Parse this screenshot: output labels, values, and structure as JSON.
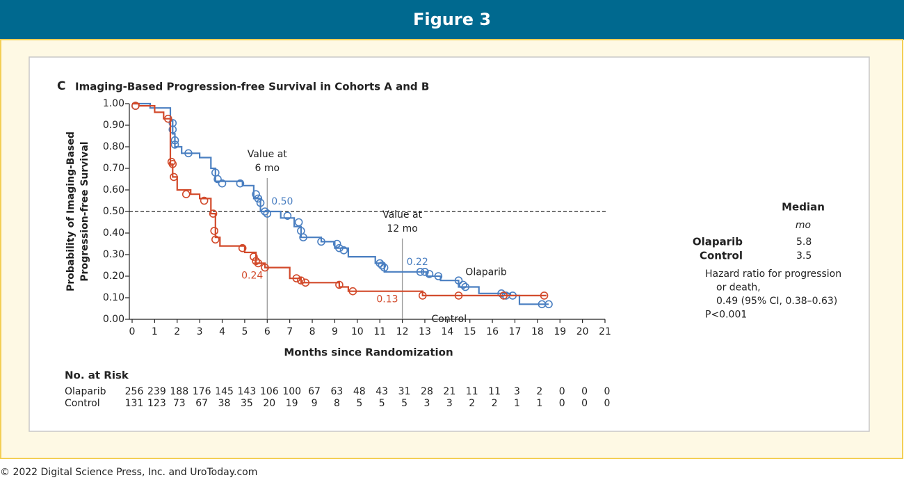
{
  "header": {
    "title": "Figure 3"
  },
  "chart_data": {
    "type": "kaplan-meier",
    "panel": "C",
    "title": "Imaging-Based Progression-free Survival in Cohorts A and B",
    "y_label": [
      "Probability of Imaging-Based",
      "Progression-free Survival"
    ],
    "x_label": "Months since Randomization",
    "xlim": [
      0,
      21
    ],
    "ylim": [
      0,
      1
    ],
    "xticks": [
      0,
      1,
      2,
      3,
      4,
      5,
      6,
      7,
      8,
      9,
      10,
      11,
      12,
      13,
      14,
      15,
      16,
      17,
      18,
      19,
      20,
      21
    ],
    "yticks": [
      {
        "value": 0,
        "label": "0.00"
      },
      {
        "value": 0.1,
        "label": "0.10"
      },
      {
        "value": 0.2,
        "label": "0.20"
      },
      {
        "value": 0.3,
        "label": "0.30"
      },
      {
        "value": 0.4,
        "label": "0.40"
      },
      {
        "value": 0.5,
        "label": "0.50"
      },
      {
        "value": 0.6,
        "label": "0.60"
      },
      {
        "value": 0.7,
        "label": "0.70"
      },
      {
        "value": 0.8,
        "label": "0.80"
      },
      {
        "value": 0.9,
        "label": "0.90"
      },
      {
        "value": 1,
        "label": "1.00"
      }
    ],
    "hline": 0.5,
    "series": [
      {
        "name": "Olaparib",
        "color": "#4a7fc1",
        "x": [
          0,
          0.8,
          0.8,
          1.7,
          1.7,
          1.8,
          1.8,
          1.9,
          1.9,
          2.2,
          2.2,
          3.0,
          3.0,
          3.5,
          3.5,
          3.7,
          3.7,
          4.9,
          4.9,
          5.4,
          5.4,
          5.7,
          5.7,
          6.6,
          6.6,
          7.2,
          7.2,
          7.5,
          7.5,
          8.4,
          8.4,
          9.0,
          9.0,
          9.6,
          9.6,
          10.8,
          10.8,
          11.2,
          11.2,
          13.1,
          13.1,
          13.7,
          13.7,
          14.5,
          14.5,
          15.4,
          15.4,
          16.8,
          16.8,
          17.2,
          17.2,
          18.5
        ],
        "values": [
          1,
          1,
          0.98,
          0.98,
          0.92,
          0.92,
          0.86,
          0.86,
          0.8,
          0.8,
          0.77,
          0.77,
          0.75,
          0.75,
          0.7,
          0.7,
          0.64,
          0.64,
          0.62,
          0.62,
          0.56,
          0.56,
          0.5,
          0.5,
          0.47,
          0.47,
          0.43,
          0.43,
          0.38,
          0.38,
          0.36,
          0.36,
          0.33,
          0.33,
          0.29,
          0.29,
          0.26,
          0.26,
          0.22,
          0.22,
          0.2,
          0.2,
          0.18,
          0.18,
          0.15,
          0.15,
          0.12,
          0.12,
          0.11,
          0.11,
          0.07,
          0.07
        ],
        "censor_x": [
          0.15,
          1.8,
          1.8,
          1.9,
          1.9,
          2.5,
          3.7,
          3.8,
          4.0,
          4.8,
          5.5,
          5.6,
          5.7,
          5.9,
          6.0,
          6.9,
          7.4,
          7.5,
          7.6,
          8.4,
          9.1,
          9.2,
          9.4,
          11.0,
          11.1,
          11.2,
          12.8,
          13.0,
          13.2,
          13.6,
          14.5,
          14.7,
          14.8,
          16.4,
          16.6,
          16.9,
          18.2,
          18.5
        ],
        "censor_y": [
          0.99,
          0.91,
          0.88,
          0.83,
          0.81,
          0.77,
          0.68,
          0.65,
          0.63,
          0.63,
          0.58,
          0.56,
          0.54,
          0.5,
          0.49,
          0.48,
          0.45,
          0.41,
          0.38,
          0.36,
          0.35,
          0.33,
          0.32,
          0.26,
          0.25,
          0.24,
          0.22,
          0.22,
          0.21,
          0.2,
          0.18,
          0.16,
          0.15,
          0.12,
          0.11,
          0.11,
          0.07,
          0.07
        ]
      },
      {
        "name": "Control",
        "color": "#d24a2b",
        "x": [
          0,
          0.3,
          0.3,
          1.0,
          1.0,
          1.4,
          1.4,
          1.7,
          1.7,
          1.8,
          1.8,
          2.0,
          2.0,
          2.6,
          2.6,
          3.0,
          3.0,
          3.5,
          3.5,
          3.7,
          3.7,
          3.9,
          3.9,
          5.0,
          5.0,
          5.5,
          5.5,
          5.9,
          5.9,
          7.0,
          7.0,
          7.5,
          7.5,
          9.2,
          9.2,
          9.6,
          9.6,
          12.9,
          12.9,
          18.4
        ],
        "values": [
          1,
          1,
          0.99,
          0.99,
          0.96,
          0.96,
          0.93,
          0.93,
          0.72,
          0.72,
          0.66,
          0.66,
          0.6,
          0.6,
          0.58,
          0.58,
          0.56,
          0.56,
          0.49,
          0.49,
          0.38,
          0.38,
          0.34,
          0.34,
          0.31,
          0.31,
          0.26,
          0.26,
          0.24,
          0.24,
          0.19,
          0.19,
          0.17,
          0.17,
          0.15,
          0.15,
          0.13,
          0.13,
          0.11,
          0.11
        ],
        "censor_x": [
          0.15,
          1.6,
          1.75,
          1.8,
          1.85,
          2.4,
          3.2,
          3.6,
          3.65,
          3.7,
          4.9,
          5.4,
          5.5,
          5.6,
          5.9,
          7.3,
          7.5,
          7.7,
          9.2,
          9.8,
          12.9,
          14.5,
          16.5,
          18.3
        ],
        "censor_y": [
          0.99,
          0.93,
          0.73,
          0.72,
          0.66,
          0.58,
          0.55,
          0.49,
          0.41,
          0.37,
          0.33,
          0.29,
          0.27,
          0.26,
          0.24,
          0.19,
          0.18,
          0.17,
          0.16,
          0.13,
          0.11,
          0.11,
          0.11,
          0.11
        ]
      }
    ],
    "reference_lines": [
      {
        "x": 6,
        "label": [
          "Value at",
          "6 mo"
        ],
        "values": [
          0.5,
          0.24
        ],
        "value_labels": [
          "0.50",
          "0.24"
        ]
      },
      {
        "x": 12,
        "label": [
          "Value at",
          "12 mo"
        ],
        "values": [
          0.22,
          0.13
        ],
        "value_labels": [
          "0.22",
          "0.13"
        ]
      }
    ],
    "median_table": {
      "header": "Median",
      "unit": "mo",
      "rows": [
        [
          "Olaparib",
          "5.8"
        ],
        [
          "Control",
          "3.5"
        ]
      ],
      "notes": [
        "Hazard ratio for progression",
        "or death,",
        "0.49 (95% CI, 0.38–0.63)",
        "P<0.001"
      ]
    },
    "risk_table": {
      "title": "No. at Risk",
      "rows": [
        {
          "name": "Olaparib",
          "counts": [
            "256",
            "239",
            "188",
            "176",
            "145",
            "143",
            "106",
            "100",
            "67",
            "63",
            "48",
            "43",
            "31",
            "28",
            "21",
            "11",
            "11",
            "3",
            "2",
            "0",
            "0",
            "0"
          ]
        },
        {
          "name": "Control",
          "counts": [
            "131",
            "123",
            "73",
            "67",
            "38",
            "35",
            "20",
            "19",
            "9",
            "8",
            "5",
            "5",
            "5",
            "3",
            "3",
            "2",
            "2",
            "1",
            "1",
            "0",
            "0",
            "0"
          ]
        }
      ]
    }
  },
  "footer": "© 2022 Digital Science Press, Inc. and UroToday.com"
}
